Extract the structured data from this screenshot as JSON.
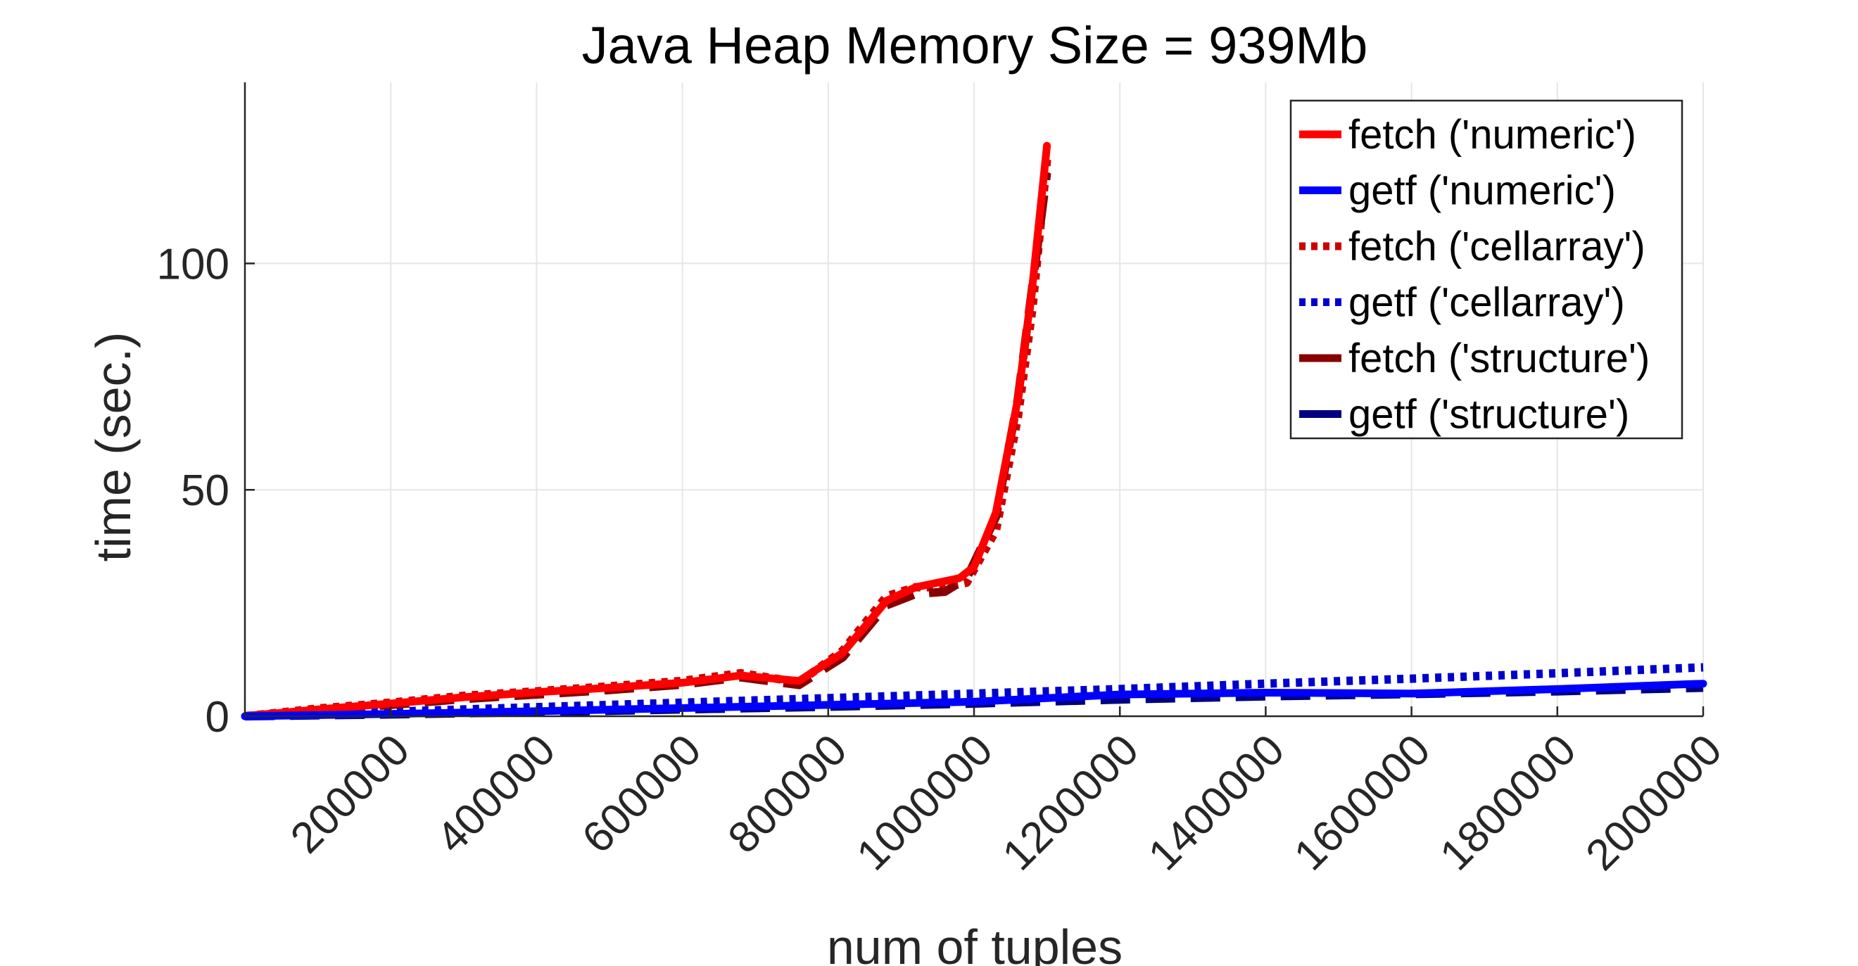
{
  "chart_data": {
    "type": "line",
    "title": "Java Heap Memory Size = 939Mb",
    "xlabel": "num of tuples",
    "ylabel": "time (sec.)",
    "xlim": [
      1,
      2000000
    ],
    "ylim": [
      0,
      140
    ],
    "xticks": [
      200000,
      400000,
      600000,
      800000,
      1000000,
      1200000,
      1400000,
      1600000,
      1800000,
      2000000
    ],
    "xtick_labels": [
      "200000",
      "400000",
      "600000",
      "800000",
      "1000000",
      "1200000",
      "1400000",
      "1600000",
      "1800000",
      "2000000"
    ],
    "yticks": [
      0,
      50,
      100
    ],
    "ytick_labels": [
      "0",
      "50",
      "100"
    ],
    "grid": true,
    "legend_position": "top-right",
    "series": [
      {
        "name": "fetch ('numeric')",
        "color": "#ff0000",
        "style": "solid",
        "x": [
          1,
          100000,
          200000,
          300000,
          400000,
          500000,
          600000,
          680000,
          760000,
          820000,
          880000,
          920000,
          980000,
          1000000,
          1030000,
          1060000,
          1080000,
          1100000
        ],
        "y": [
          0,
          1.5,
          2.8,
          4.2,
          5.3,
          6.3,
          7.4,
          9.0,
          7.8,
          14.0,
          25.5,
          28.5,
          30.5,
          33.0,
          45.0,
          70.0,
          95.0,
          126.0
        ]
      },
      {
        "name": "getf ('numeric')",
        "color": "#0000ff",
        "style": "solid",
        "x": [
          1,
          200000,
          400000,
          600000,
          800000,
          1000000,
          1200000,
          1400000,
          1600000,
          1800000,
          2000000
        ],
        "y": [
          0,
          0.5,
          1.1,
          1.8,
          2.5,
          3.2,
          4.8,
          5.2,
          5.0,
          6.0,
          7.2
        ]
      },
      {
        "name": "fetch ('cellarray')",
        "color": "#cc0000",
        "style": "dotted",
        "x": [
          1,
          100000,
          200000,
          300000,
          400000,
          500000,
          600000,
          680000,
          760000,
          820000,
          880000,
          920000,
          960000,
          990000,
          1030000,
          1060000,
          1080000,
          1100000
        ],
        "y": [
          0,
          1.7,
          3.0,
          4.5,
          5.5,
          6.6,
          7.8,
          9.5,
          7.5,
          14.5,
          26.5,
          28.5,
          28.5,
          29.5,
          41.0,
          66.0,
          90.0,
          123.0
        ]
      },
      {
        "name": "getf ('cellarray')",
        "color": "#0000cc",
        "style": "dotted",
        "x": [
          1,
          200000,
          400000,
          600000,
          800000,
          1000000,
          1200000,
          1400000,
          1600000,
          1800000,
          2000000
        ],
        "y": [
          0,
          1.0,
          2.0,
          3.0,
          4.0,
          5.0,
          6.0,
          7.2,
          8.3,
          9.5,
          10.8
        ]
      },
      {
        "name": "fetch ('structure')",
        "color": "#880000",
        "style": "dashed",
        "x": [
          1,
          100000,
          200000,
          300000,
          400000,
          500000,
          600000,
          680000,
          760000,
          820000,
          880000,
          920000,
          960000,
          990000,
          1030000,
          1060000,
          1080000,
          1100000
        ],
        "y": [
          0,
          1.3,
          2.5,
          3.8,
          4.8,
          5.8,
          7.0,
          8.6,
          6.9,
          13.0,
          24.5,
          27.0,
          27.5,
          30.5,
          44.0,
          70.0,
          95.0,
          120.0
        ]
      },
      {
        "name": "getf ('structure')",
        "color": "#000080",
        "style": "dashed",
        "x": [
          1,
          200000,
          400000,
          600000,
          800000,
          1000000,
          1200000,
          1400000,
          1600000,
          1800000,
          2000000
        ],
        "y": [
          0,
          0.4,
          0.9,
          1.5,
          2.1,
          2.8,
          3.7,
          4.4,
          4.9,
          5.5,
          6.3
        ]
      }
    ]
  }
}
